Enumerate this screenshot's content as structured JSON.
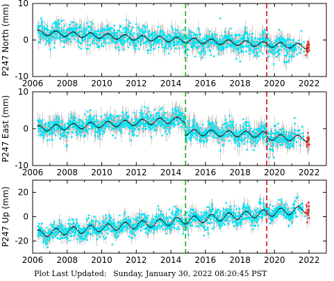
{
  "footer": {
    "label": "Plot Last Updated:",
    "timestamp": "Sunday, January 30, 2022 08:20:45 PST"
  },
  "colors": {
    "error_bars": "#aaaaaa",
    "points": "#00e5f5",
    "model": "#000000",
    "recent_points": "#e8281e",
    "line_green": "#22bb22",
    "line_red": "#dd2222"
  },
  "chart_data": [
    {
      "type": "scatter",
      "ylabel": "P247 North (mm)",
      "xlim": [
        2006,
        2023
      ],
      "ylim": [
        -10,
        10
      ],
      "xticks": [
        2006,
        2008,
        2010,
        2012,
        2014,
        2016,
        2018,
        2020,
        2022
      ],
      "yticks": [
        -10,
        0,
        10
      ],
      "vlines": [
        {
          "x": 2014.85,
          "color": "green",
          "style": "dashed"
        },
        {
          "x": 2019.55,
          "color": "red",
          "style": "dashed"
        }
      ],
      "model": {
        "t0": 2006.3,
        "t1": 2022.0,
        "y_start": 2.0,
        "y_end": -1.8,
        "amplitude": 0.7
      },
      "noise_sd": 1.5,
      "errorbar_sd": 2.0,
      "recent_points_after": 2021.8
    },
    {
      "type": "scatter",
      "ylabel": "P247 East (mm)",
      "xlim": [
        2006,
        2023
      ],
      "ylim": [
        -10,
        10
      ],
      "xticks": [
        2006,
        2008,
        2010,
        2012,
        2014,
        2016,
        2018,
        2020,
        2022
      ],
      "yticks": [
        -10,
        0,
        10
      ],
      "vlines": [
        {
          "x": 2014.85,
          "color": "green",
          "style": "dashed"
        },
        {
          "x": 2019.55,
          "color": "red",
          "style": "dashed"
        }
      ],
      "model": {
        "t0": 2006.3,
        "t1": 2022.0,
        "y_start": 0.0,
        "y_end": -2.0,
        "amplitude": 0.8,
        "offsets": [
          {
            "x": 2014.85,
            "dy": -3.5
          },
          {
            "x": 2019.55,
            "dy": -1.3
          }
        ],
        "pre_trend_end": 2.5
      },
      "noise_sd": 1.4,
      "errorbar_sd": 2.2,
      "recent_points_after": 2021.8
    },
    {
      "type": "scatter",
      "ylabel": "P247 Up (mm)",
      "xlim": [
        2006,
        2023
      ],
      "ylim": [
        -30,
        30
      ],
      "xticks": [
        2006,
        2008,
        2010,
        2012,
        2014,
        2016,
        2018,
        2020,
        2022
      ],
      "yticks": [
        -20,
        0,
        20
      ],
      "vlines": [
        {
          "x": 2014.85,
          "color": "green",
          "style": "dashed"
        },
        {
          "x": 2019.55,
          "color": "red",
          "style": "dashed"
        }
      ],
      "model": {
        "t0": 2006.3,
        "t1": 2022.0,
        "y_start": -14.0,
        "y_end": 6.0,
        "amplitude": 3.0
      },
      "noise_sd": 4.0,
      "errorbar_sd": 5.0,
      "recent_points_after": 2021.8
    }
  ]
}
